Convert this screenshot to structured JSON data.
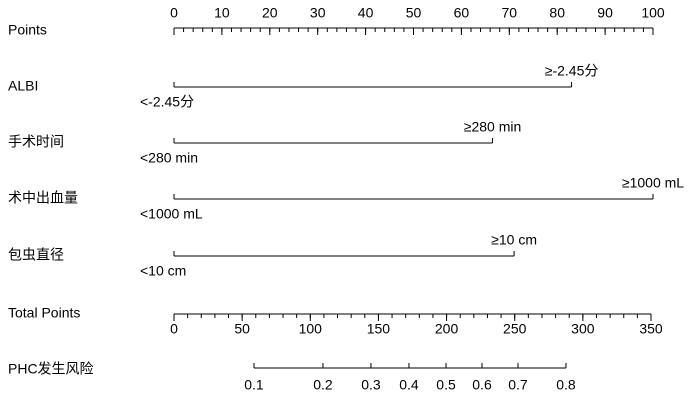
{
  "chart_data": {
    "type": "nomogram",
    "points_axis": {
      "label": "Points",
      "lim": [
        0,
        100
      ],
      "ticks": [
        0,
        10,
        20,
        30,
        40,
        50,
        60,
        70,
        80,
        90,
        100
      ],
      "minor_step": 2
    },
    "variables": [
      {
        "name": "ALBI",
        "levels": [
          {
            "label": "<-2.45分",
            "points": 0
          },
          {
            "label": "≥-2.45分",
            "points": 83
          }
        ]
      },
      {
        "name": "手术时间",
        "levels": [
          {
            "label": "<280 min",
            "points": 0
          },
          {
            "label": "≥280 min",
            "points": 66.5
          }
        ]
      },
      {
        "name": "术中出血量",
        "levels": [
          {
            "label": "<1000 mL",
            "points": 0
          },
          {
            "label": "≥1000 mL",
            "points": 100
          }
        ]
      },
      {
        "name": "包虫直径",
        "levels": [
          {
            "label": "<10 cm",
            "points": 0
          },
          {
            "label": "≥10 cm",
            "points": 71
          }
        ]
      }
    ],
    "total_axis": {
      "label": "Total Points",
      "lim": [
        0,
        350
      ],
      "ticks": [
        0,
        50,
        100,
        150,
        200,
        250,
        300,
        350
      ],
      "minor_step": 10
    },
    "risk_axis": {
      "label": "PHC发生风险",
      "ticks": [
        0.1,
        0.2,
        0.3,
        0.4,
        0.5,
        0.6,
        0.7,
        0.8
      ],
      "tick_total_points": [
        58.7,
        109.3,
        144.5,
        172.4,
        199.6,
        226,
        252.4,
        287.6
      ]
    }
  }
}
